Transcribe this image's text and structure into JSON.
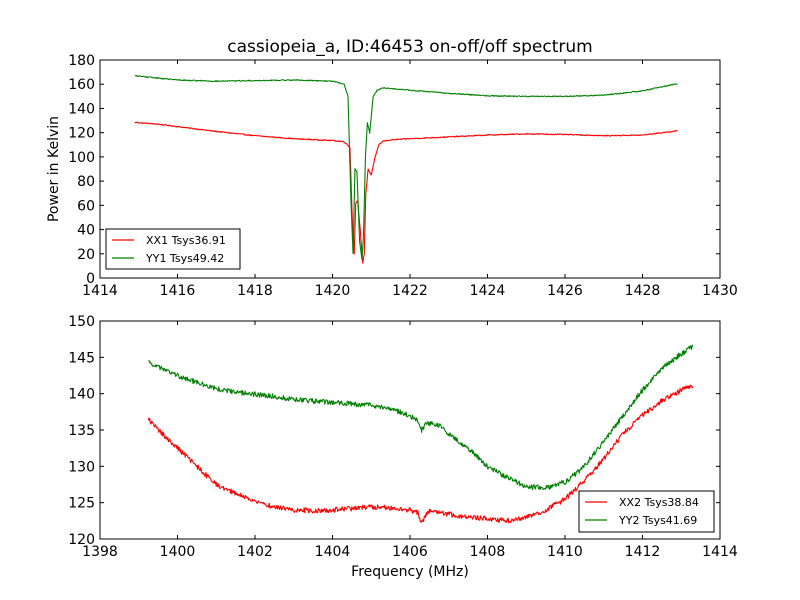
{
  "chart_data": [
    {
      "type": "line",
      "title": "cassiopeia_a, ID:46453 on-off/off spectrum",
      "xlabel": "",
      "ylabel": "Power in Kelvin",
      "xlim": [
        1414,
        1430
      ],
      "ylim": [
        0,
        180
      ],
      "xticks": [
        1414,
        1416,
        1418,
        1420,
        1422,
        1424,
        1426,
        1428,
        1430
      ],
      "yticks": [
        0,
        20,
        40,
        60,
        80,
        100,
        120,
        140,
        160,
        180
      ],
      "grid": false,
      "legend": "lower-left",
      "series": [
        {
          "name": "XX1 Tsys36.91",
          "color": "#ff0000",
          "x": [
            1414.9,
            1415.5,
            1416.0,
            1417.0,
            1418.0,
            1419.0,
            1420.0,
            1420.3,
            1420.45,
            1420.52,
            1420.56,
            1420.6,
            1420.65,
            1420.72,
            1420.78,
            1420.82,
            1420.86,
            1420.92,
            1421.0,
            1421.1,
            1421.2,
            1421.3,
            1421.5,
            1422.0,
            1423.0,
            1424.0,
            1425.0,
            1426.0,
            1427.0,
            1428.0,
            1428.9
          ],
          "y": [
            128.5,
            127,
            125,
            121,
            117.5,
            115,
            113.5,
            112.5,
            108,
            40,
            20,
            62,
            64,
            38,
            12,
            20,
            70,
            90,
            85,
            100,
            110,
            113,
            114,
            115,
            116.5,
            118,
            119,
            118.5,
            117.5,
            118,
            121.5
          ]
        },
        {
          "name": "YY1 Tsys49.42",
          "color": "#008000",
          "x": [
            1414.9,
            1415.5,
            1416.0,
            1417.0,
            1418.0,
            1419.0,
            1420.0,
            1420.3,
            1420.4,
            1420.48,
            1420.53,
            1420.58,
            1420.63,
            1420.7,
            1420.76,
            1420.8,
            1420.85,
            1420.9,
            1420.96,
            1421.05,
            1421.15,
            1421.3,
            1421.5,
            1422.0,
            1423.0,
            1424.0,
            1425.0,
            1426.0,
            1427.0,
            1428.0,
            1428.9
          ],
          "y": [
            167,
            165,
            163.5,
            162.5,
            163,
            163.5,
            162.5,
            160,
            150,
            60,
            20,
            90,
            88,
            30,
            15,
            35,
            100,
            128,
            120,
            150,
            155,
            157,
            156.5,
            155,
            152.5,
            150.5,
            150,
            150,
            151,
            154.5,
            160.5
          ]
        }
      ]
    },
    {
      "type": "line",
      "title": "",
      "xlabel": "Frequency (MHz)",
      "ylabel": "",
      "xlim": [
        1398,
        1414
      ],
      "ylim": [
        120,
        150
      ],
      "xticks": [
        1398,
        1400,
        1402,
        1404,
        1406,
        1408,
        1410,
        1412,
        1414
      ],
      "yticks": [
        120,
        125,
        130,
        135,
        140,
        145,
        150
      ],
      "grid": false,
      "legend": "lower-right",
      "series": [
        {
          "name": "XX2 Tsys38.84",
          "color": "#ff0000",
          "x": [
            1399.25,
            1399.5,
            1400.0,
            1400.5,
            1401.0,
            1401.5,
            1402.0,
            1402.5,
            1403.0,
            1403.5,
            1404.0,
            1404.5,
            1405.0,
            1405.5,
            1406.0,
            1406.2,
            1406.3,
            1406.45,
            1406.7,
            1407.0,
            1407.5,
            1408.0,
            1408.5,
            1409.0,
            1409.5,
            1410.0,
            1410.5,
            1411.0,
            1411.5,
            1412.0,
            1412.5,
            1413.0,
            1413.3
          ],
          "y": [
            136.5,
            135,
            132.5,
            130,
            127.5,
            126.3,
            125.2,
            124.4,
            124,
            123.9,
            124,
            124.2,
            124.4,
            124.3,
            124,
            123.6,
            122.2,
            123.8,
            123.8,
            123.4,
            123,
            122.8,
            122.5,
            123,
            124,
            125.5,
            128,
            131,
            134.5,
            137,
            139,
            140.5,
            141
          ]
        },
        {
          "name": "YY2 Tsys41.69",
          "color": "#008000",
          "x": [
            1399.25,
            1399.5,
            1400.0,
            1400.5,
            1401.0,
            1401.5,
            1402.0,
            1402.5,
            1403.0,
            1403.5,
            1404.0,
            1404.5,
            1405.0,
            1405.5,
            1406.0,
            1406.2,
            1406.3,
            1406.45,
            1406.7,
            1407.0,
            1407.5,
            1408.0,
            1408.5,
            1409.0,
            1409.5,
            1410.0,
            1410.5,
            1411.0,
            1411.5,
            1412.0,
            1412.5,
            1413.0,
            1413.3
          ],
          "y": [
            144.3,
            143.7,
            142.5,
            141.5,
            140.7,
            140.2,
            139.9,
            139.6,
            139.2,
            139,
            138.8,
            138.6,
            138.4,
            137.9,
            137,
            136.2,
            135,
            136,
            135.8,
            134.5,
            132.5,
            130,
            128.5,
            127.2,
            127,
            127.8,
            130,
            133.5,
            137,
            140.5,
            143.5,
            145.5,
            146.5
          ]
        }
      ]
    }
  ]
}
